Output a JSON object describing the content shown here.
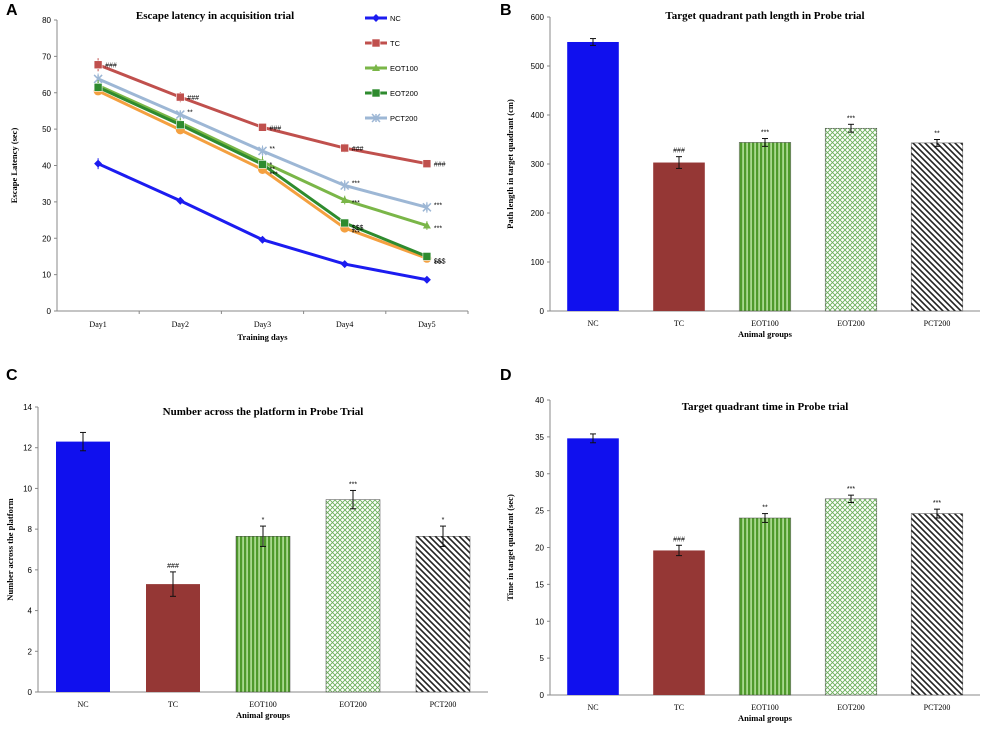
{
  "chart_data": [
    {
      "panel": "A",
      "type": "line",
      "title": "Escape latency in acquisition  trial",
      "xlabel": "Training days",
      "ylabel": "Escape Latency (sec)",
      "ylim": [
        0,
        80
      ],
      "yticks": [
        0,
        10,
        20,
        30,
        40,
        50,
        60,
        70,
        80
      ],
      "categories": [
        "Day1",
        "Day2",
        "Day3",
        "Day4",
        "Day5"
      ],
      "legend_position": "top-right",
      "series": [
        {
          "name": "NC",
          "color": "#1c1cf0",
          "marker": "diamond",
          "values": [
            40.5,
            30.3,
            19.6,
            12.9,
            8.6
          ],
          "errors": [
            1.5,
            1.0,
            0.8,
            0.6,
            0.8
          ],
          "labels": [
            "",
            "",
            "",
            "",
            ""
          ]
        },
        {
          "name": "TC",
          "color": "#c0504d",
          "marker": "square",
          "values": [
            67.7,
            58.8,
            50.5,
            44.8,
            40.5
          ],
          "errors": [
            1.8,
            1.4,
            1.0,
            1.2,
            1.0
          ],
          "labels": [
            "###",
            "###",
            "###",
            "###",
            "###"
          ]
        },
        {
          "name": "EOT100",
          "color": "#7ab648",
          "marker": "triangle",
          "values": [
            62.0,
            51.8,
            41.0,
            30.5,
            23.5
          ],
          "errors": [
            1.5,
            1.2,
            1.5,
            1.2,
            1.2
          ],
          "labels": [
            "",
            "",
            "*",
            "***",
            "***"
          ]
        },
        {
          "name": "EOT200",
          "color": "#2e8b2e",
          "marker": "square",
          "values": [
            61.5,
            51.2,
            40.3,
            24.2,
            15.0
          ],
          "errors": [
            1.2,
            1.0,
            1.0,
            1.0,
            1.0
          ],
          "labels": [
            "",
            "",
            "**",
            "$$$",
            "$$$"
          ]
        },
        {
          "name": "PCT200",
          "color": "#9db7d5",
          "marker": "asterisk",
          "values": [
            63.8,
            54.0,
            44.0,
            34.5,
            28.5
          ],
          "errors": [
            1.5,
            1.2,
            1.5,
            1.5,
            1.5
          ],
          "labels": [
            "",
            "**",
            "**",
            "***",
            "***"
          ]
        }
      ],
      "orange_line": {
        "color": "#f4a040",
        "values": [
          60.5,
          49.8,
          38.9,
          22.8,
          14.5
        ],
        "labels": [
          "",
          "",
          "***",
          "***",
          "***"
        ]
      }
    },
    {
      "panel": "B",
      "type": "bar",
      "title": "Target quadrant  path length in Probe trial",
      "xlabel": "Animal groups",
      "ylabel": "Path length in target quadrant  (cm)",
      "ylim": [
        0,
        600
      ],
      "yticks": [
        0,
        100,
        200,
        300,
        400,
        500,
        600
      ],
      "categories": [
        "NC",
        "TC",
        "EOT100",
        "EOT200",
        "PCT200"
      ],
      "values": [
        549,
        303,
        344,
        373,
        343
      ],
      "errors": [
        7,
        12,
        8,
        8,
        7
      ],
      "labels": [
        "",
        "###",
        "***",
        "***",
        "**"
      ]
    },
    {
      "panel": "C",
      "type": "bar",
      "title": "Number  across the platform  in Probe Trial",
      "xlabel": "Animal groups",
      "ylabel": "Number across the platform",
      "ylim": [
        0,
        14
      ],
      "yticks": [
        0,
        2,
        4,
        6,
        8,
        10,
        12,
        14
      ],
      "categories": [
        "NC",
        "TC",
        "EOT100",
        "EOT200",
        "PCT200"
      ],
      "values": [
        12.3,
        5.3,
        7.65,
        9.45,
        7.65
      ],
      "errors": [
        0.45,
        0.6,
        0.5,
        0.45,
        0.5
      ],
      "labels": [
        "",
        "###",
        "*",
        "***",
        "*"
      ]
    },
    {
      "panel": "D",
      "type": "bar",
      "title": "Target quadrant  time in Probe trial",
      "xlabel": "Animal groups",
      "ylabel": "Time in target quadrant  (sec)",
      "ylim": [
        0,
        40
      ],
      "yticks": [
        0,
        5,
        10,
        15,
        20,
        25,
        30,
        35,
        40
      ],
      "categories": [
        "NC",
        "TC",
        "EOT100",
        "EOT200",
        "PCT200"
      ],
      "values": [
        34.8,
        19.6,
        24.0,
        26.6,
        24.6
      ],
      "errors": [
        0.6,
        0.7,
        0.6,
        0.5,
        0.6
      ],
      "labels": [
        "",
        "###",
        "**",
        "***",
        "***"
      ]
    }
  ],
  "bar_styles": {
    "NC": {
      "fill": "#1010ee",
      "pattern": "solid"
    },
    "TC": {
      "fill": "#953735",
      "pattern": "solid"
    },
    "EOT100": {
      "fill": "#4f9a2c",
      "pattern": "vertical"
    },
    "EOT200": {
      "fill": "#9bd08c",
      "pattern": "crosshatch"
    },
    "PCT200": {
      "fill": "#222222",
      "pattern": "diagonal"
    }
  }
}
